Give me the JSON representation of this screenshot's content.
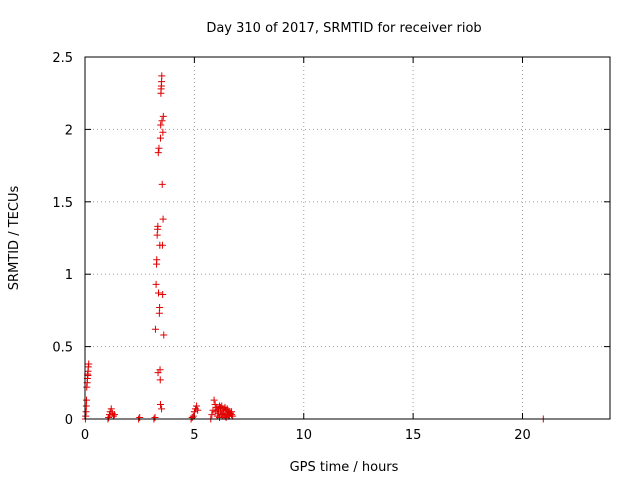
{
  "chart_data": {
    "type": "scatter",
    "title": "Day 310 of 2017, SRMTID for receiver riob",
    "xlabel": "GPS time / hours",
    "ylabel": "SRMTID / TECUs",
    "xlim": [
      0,
      24
    ],
    "ylim": [
      0,
      2.5
    ],
    "xticks": [
      0,
      5,
      10,
      15,
      20
    ],
    "yticks": [
      0,
      0.5,
      1,
      1.5,
      2,
      2.5
    ],
    "xtick_labels": [
      "0",
      "5",
      "10",
      "15",
      "20"
    ],
    "ytick_labels": [
      "0",
      "0.5",
      "1",
      "1.5",
      "2",
      "2.5"
    ],
    "grid": true,
    "marker": "+",
    "color": "#e00000",
    "series": [
      {
        "name": "SRMTID",
        "points": [
          [
            0.02,
            0.0
          ],
          [
            0.03,
            0.02
          ],
          [
            0.05,
            0.05
          ],
          [
            0.06,
            0.09
          ],
          [
            0.07,
            0.13
          ],
          [
            0.08,
            0.22
          ],
          [
            0.1,
            0.25
          ],
          [
            0.11,
            0.28
          ],
          [
            0.12,
            0.31
          ],
          [
            0.14,
            0.33
          ],
          [
            0.15,
            0.36
          ],
          [
            0.17,
            0.38
          ],
          [
            0.13,
            0.3
          ],
          [
            1.05,
            0.0
          ],
          [
            1.08,
            0.01
          ],
          [
            1.12,
            0.03
          ],
          [
            1.15,
            0.05
          ],
          [
            1.2,
            0.07
          ],
          [
            1.25,
            0.04
          ],
          [
            1.3,
            0.02
          ],
          [
            1.35,
            0.03
          ],
          [
            2.45,
            0.0
          ],
          [
            2.5,
            0.01
          ],
          [
            3.15,
            0.0
          ],
          [
            3.2,
            0.01
          ],
          [
            3.22,
            0.62
          ],
          [
            3.25,
            0.93
          ],
          [
            3.27,
            1.07
          ],
          [
            3.28,
            1.1
          ],
          [
            3.3,
            1.27
          ],
          [
            3.32,
            1.31
          ],
          [
            3.33,
            1.33
          ],
          [
            3.34,
            0.32
          ],
          [
            3.35,
            1.84
          ],
          [
            3.36,
            0.87
          ],
          [
            3.38,
            1.87
          ],
          [
            3.4,
            0.73
          ],
          [
            3.41,
            0.77
          ],
          [
            3.42,
            1.2
          ],
          [
            3.43,
            0.34
          ],
          [
            3.44,
            0.27
          ],
          [
            3.45,
            1.94
          ],
          [
            3.46,
            2.03
          ],
          [
            3.47,
            2.25
          ],
          [
            3.48,
            2.28
          ],
          [
            3.49,
            2.3
          ],
          [
            3.5,
            2.33
          ],
          [
            3.51,
            2.37
          ],
          [
            3.52,
            2.06
          ],
          [
            3.53,
            1.62
          ],
          [
            3.54,
            1.2
          ],
          [
            3.55,
            0.86
          ],
          [
            3.56,
            1.98
          ],
          [
            3.57,
            1.38
          ],
          [
            3.58,
            2.09
          ],
          [
            3.6,
            0.58
          ],
          [
            3.45,
            0.1
          ],
          [
            3.5,
            0.07
          ],
          [
            4.85,
            0.0
          ],
          [
            4.9,
            0.01
          ],
          [
            4.95,
            0.02
          ],
          [
            5.0,
            0.05
          ],
          [
            5.05,
            0.07
          ],
          [
            5.1,
            0.09
          ],
          [
            5.15,
            0.06
          ],
          [
            5.75,
            0.0
          ],
          [
            5.8,
            0.03
          ],
          [
            5.85,
            0.06
          ],
          [
            5.9,
            0.13
          ],
          [
            5.95,
            0.1
          ],
          [
            6.0,
            0.08
          ],
          [
            6.05,
            0.06
          ],
          [
            6.1,
            0.04
          ],
          [
            6.15,
            0.09
          ],
          [
            6.2,
            0.05
          ],
          [
            6.25,
            0.03
          ],
          [
            6.3,
            0.07
          ],
          [
            6.35,
            0.04
          ],
          [
            6.4,
            0.02
          ],
          [
            6.45,
            0.06
          ],
          [
            6.5,
            0.03
          ],
          [
            6.55,
            0.05
          ],
          [
            6.6,
            0.02
          ],
          [
            6.65,
            0.04
          ],
          [
            6.7,
            0.03
          ],
          [
            6.05,
            0.02
          ],
          [
            6.2,
            0.08
          ],
          [
            6.35,
            0.06
          ],
          [
            6.5,
            0.07
          ],
          [
            6.6,
            0.05
          ],
          [
            6.15,
            0.01
          ],
          [
            6.3,
            0.02
          ],
          [
            6.45,
            0.01
          ],
          [
            6.75,
            0.02
          ],
          [
            6.25,
            0.09
          ],
          [
            6.4,
            0.08
          ],
          [
            6.55,
            0.02
          ],
          [
            6.7,
            0.05
          ],
          [
            5.95,
            0.05
          ],
          [
            6.1,
            0.07
          ],
          [
            20.95,
            0.0
          ]
        ]
      }
    ]
  }
}
